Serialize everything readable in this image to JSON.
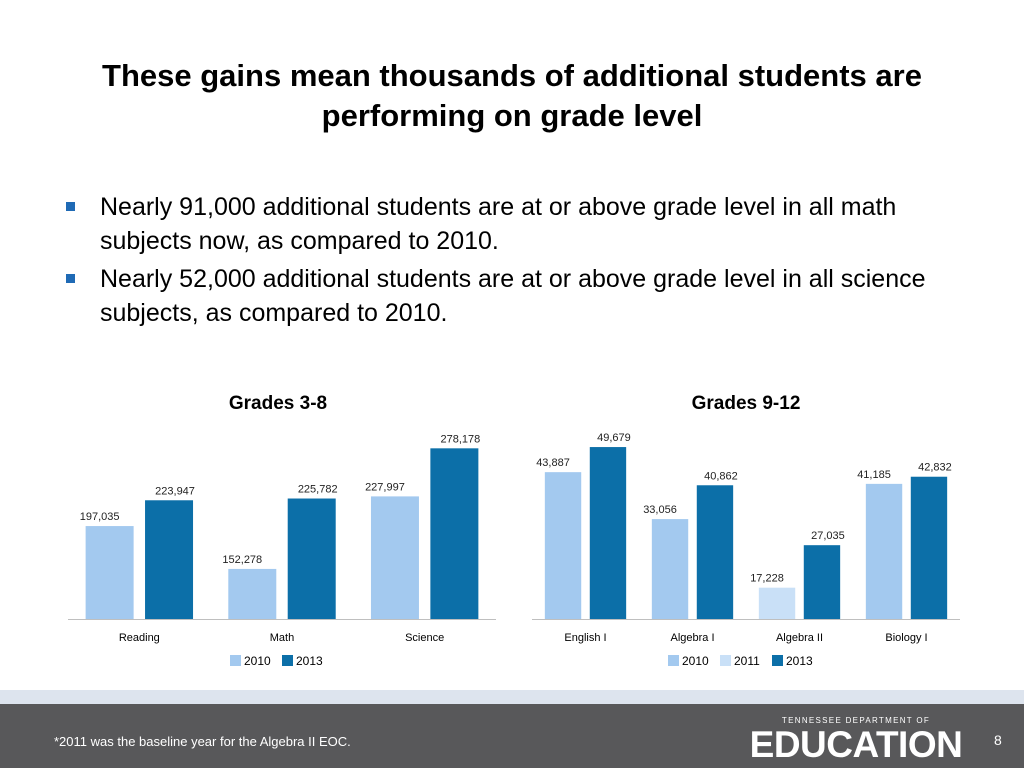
{
  "slide": {
    "title": "These gains mean thousands of additional students are performing on grade level",
    "bullets": [
      "Nearly 91,000 additional students are at or above grade level in all math subjects now, as compared to 2010.",
      "Nearly 52,000 additional students are at or above grade level in all science subjects, as compared to 2010."
    ],
    "footnote": "*2011 was the baseline year for the Algebra II EOC.",
    "page_number": "8",
    "logo": {
      "top": "TENNESSEE DEPARTMENT OF",
      "main": "EDUCATION"
    }
  },
  "colors": {
    "c2010": "#a3c9ef",
    "c2011": "#c9e0f7",
    "c2013": "#0c6fa8",
    "bullet": "#1f6ab5",
    "footer": "#58585a"
  },
  "chart_data": [
    {
      "type": "bar",
      "title": "Grades 3-8",
      "categories": [
        "Reading",
        "Math",
        "Science"
      ],
      "series": [
        {
          "name": "2010",
          "values": [
            197035,
            152278,
            227997
          ],
          "labels": [
            "197,035",
            "152,278",
            "227,997"
          ]
        },
        {
          "name": "2013",
          "values": [
            223947,
            225782,
            278178
          ],
          "labels": [
            "223,947",
            "225,782",
            "278,178"
          ]
        }
      ],
      "ylim": [
        100000,
        290000
      ],
      "grid": false,
      "legend": "bottom"
    },
    {
      "type": "bar",
      "title": "Grades 9-12",
      "categories": [
        "English I",
        "Algebra I",
        "Algebra II",
        "Biology I"
      ],
      "series": [
        {
          "name": "2010",
          "values": [
            43887,
            33056,
            null,
            41185
          ],
          "labels": [
            "43,887",
            "33,056",
            null,
            "41,185"
          ]
        },
        {
          "name": "2011",
          "values": [
            null,
            null,
            17228,
            null
          ],
          "labels": [
            null,
            null,
            "17,228",
            null
          ]
        },
        {
          "name": "2013",
          "values": [
            49679,
            40862,
            27035,
            42832
          ],
          "labels": [
            "49,679",
            "40,862",
            "27,035",
            "42,832"
          ]
        }
      ],
      "ylim": [
        10000,
        52000
      ],
      "grid": false,
      "legend": "bottom"
    }
  ]
}
